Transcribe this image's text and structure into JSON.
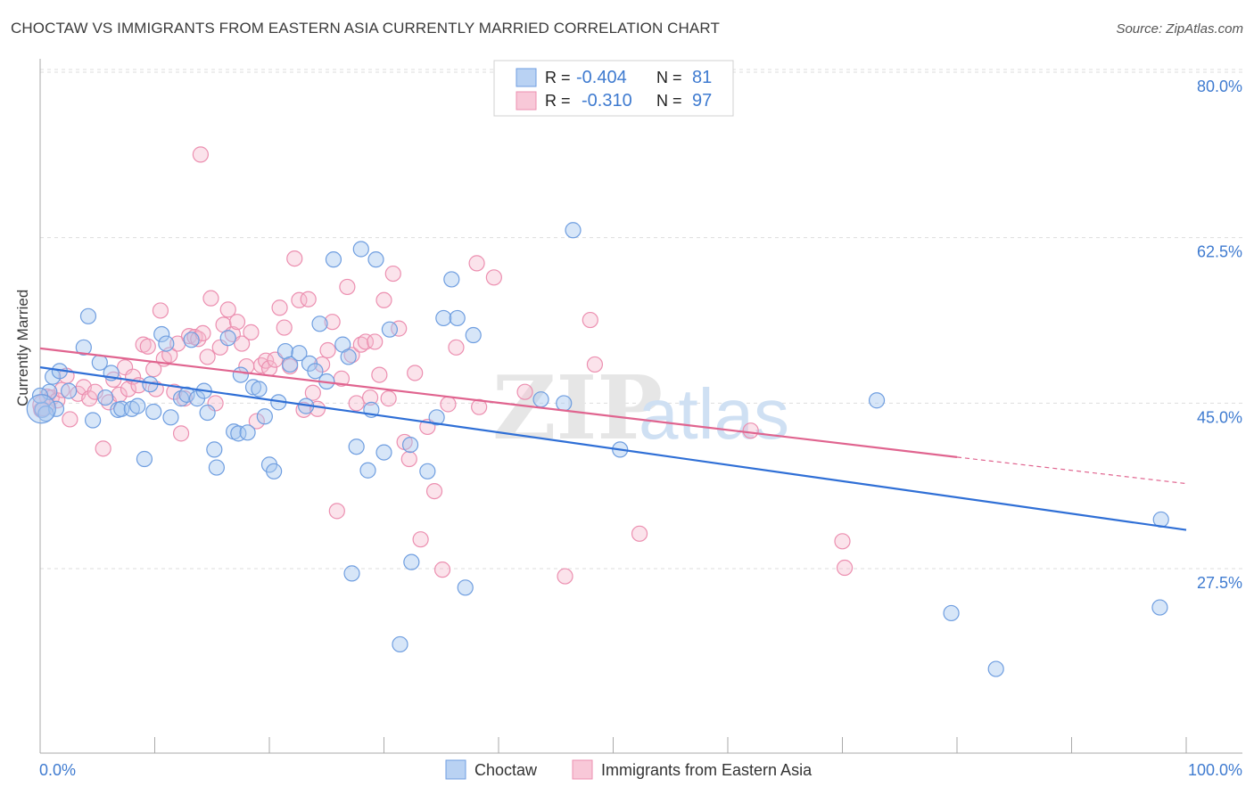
{
  "title": "CHOCTAW VS IMMIGRANTS FROM EASTERN ASIA CURRENTLY MARRIED CORRELATION CHART",
  "source": "Source: ZipAtlas.com",
  "watermark": {
    "zip": "ZIP",
    "atlas": "atlas"
  },
  "colors": {
    "blue_stroke": "#6f9ee0",
    "blue_fill": "rgba(167,199,240,0.45)",
    "blue_line": "#2f6fd6",
    "pink_stroke": "#ec8fb0",
    "pink_fill": "rgba(246,186,206,0.40)",
    "pink_line": "#e0648f",
    "tick_text": "#3f7bd0",
    "grid": "#dddddd",
    "axis": "#aaaaaa"
  },
  "legend": {
    "rows": [
      {
        "r_label": "R =",
        "r_value": "-0.404",
        "n_label": "N =",
        "n_value": "81"
      },
      {
        "r_label": "R =",
        "r_value": "-0.310",
        "n_label": "N =",
        "n_value": "97"
      }
    ]
  },
  "bottom_legend": [
    "Choctaw",
    "Immigrants from Eastern Asia"
  ],
  "chart_data": {
    "type": "scatter",
    "title": "CHOCTAW VS IMMIGRANTS FROM EASTERN ASIA CURRENTLY MARRIED CORRELATION CHART",
    "xlabel": "",
    "ylabel": "Currently Married",
    "xlim": [
      0,
      100
    ],
    "ylim": [
      10,
      83
    ],
    "x_tick_labels": [
      "0.0%",
      "100.0%"
    ],
    "y_ticks": [
      27.5,
      45.0,
      62.5,
      80.0
    ],
    "y_tick_labels": [
      "27.5%",
      "45.0%",
      "62.5%",
      "80.0%"
    ],
    "grid": true,
    "legend_position": "top-center",
    "series": [
      {
        "name": "Choctaw",
        "r": -0.404,
        "n": 81,
        "trend": {
          "x": [
            0,
            100
          ],
          "y": [
            50.3,
            33.1
          ]
        },
        "points": [
          [
            0.2,
            45.8
          ],
          [
            0.8,
            47.7
          ],
          [
            1.1,
            49.3
          ],
          [
            1.4,
            45.9
          ],
          [
            1.7,
            49.9
          ],
          [
            2.5,
            47.8
          ],
          [
            3.8,
            52.4
          ],
          [
            4.2,
            55.7
          ],
          [
            4.6,
            44.7
          ],
          [
            5.2,
            50.8
          ],
          [
            5.7,
            47.1
          ],
          [
            6.2,
            49.7
          ],
          [
            6.8,
            45.8
          ],
          [
            7.1,
            45.9
          ],
          [
            8.0,
            45.9
          ],
          [
            8.5,
            46.2
          ],
          [
            9.1,
            40.6
          ],
          [
            9.6,
            48.5
          ],
          [
            9.9,
            45.6
          ],
          [
            10.6,
            53.8
          ],
          [
            11.0,
            52.8
          ],
          [
            11.4,
            45.0
          ],
          [
            12.3,
            47.0
          ],
          [
            12.8,
            47.4
          ],
          [
            13.2,
            53.2
          ],
          [
            13.7,
            47.0
          ],
          [
            14.3,
            47.8
          ],
          [
            14.6,
            45.5
          ],
          [
            15.2,
            41.6
          ],
          [
            15.4,
            39.7
          ],
          [
            16.4,
            53.4
          ],
          [
            16.9,
            43.5
          ],
          [
            17.3,
            43.3
          ],
          [
            17.5,
            49.5
          ],
          [
            18.1,
            43.4
          ],
          [
            18.6,
            48.2
          ],
          [
            19.1,
            48.0
          ],
          [
            19.6,
            45.1
          ],
          [
            20.0,
            40.0
          ],
          [
            20.4,
            39.3
          ],
          [
            20.8,
            46.6
          ],
          [
            21.4,
            52.0
          ],
          [
            21.8,
            50.6
          ],
          [
            22.6,
            51.8
          ],
          [
            23.2,
            46.2
          ],
          [
            23.5,
            50.7
          ],
          [
            24.0,
            49.9
          ],
          [
            24.4,
            54.9
          ],
          [
            25.0,
            48.8
          ],
          [
            25.6,
            61.7
          ],
          [
            26.4,
            52.7
          ],
          [
            26.9,
            51.4
          ],
          [
            27.2,
            28.5
          ],
          [
            27.6,
            41.9
          ],
          [
            28.0,
            62.8
          ],
          [
            28.6,
            39.4
          ],
          [
            28.9,
            45.8
          ],
          [
            29.3,
            61.7
          ],
          [
            30.0,
            41.3
          ],
          [
            30.5,
            54.3
          ],
          [
            31.4,
            21.0
          ],
          [
            32.3,
            42.1
          ],
          [
            32.4,
            29.7
          ],
          [
            33.8,
            39.3
          ],
          [
            34.6,
            45.0
          ],
          [
            35.2,
            55.5
          ],
          [
            35.9,
            59.6
          ],
          [
            36.4,
            55.5
          ],
          [
            37.1,
            27.0
          ],
          [
            37.8,
            53.7
          ],
          [
            43.7,
            46.9
          ],
          [
            45.7,
            46.5
          ],
          [
            46.5,
            64.8
          ],
          [
            50.6,
            41.6
          ],
          [
            73.0,
            46.8
          ],
          [
            79.5,
            24.3
          ],
          [
            83.4,
            18.4
          ],
          [
            97.7,
            24.9
          ],
          [
            97.8,
            34.2
          ],
          [
            0.0,
            47.3
          ],
          [
            0.5,
            45.4
          ]
        ]
      },
      {
        "name": "Immigrants from Eastern Asia",
        "r": -0.31,
        "n": 97,
        "trend": {
          "x": [
            0,
            80
          ],
          "y": [
            52.3,
            40.8
          ],
          "dashed_to": {
            "x": 100,
            "y": 38.0
          }
        },
        "points": [
          [
            0.1,
            45.8
          ],
          [
            0.6,
            47.2
          ],
          [
            1.0,
            47.1
          ],
          [
            1.5,
            46.8
          ],
          [
            1.9,
            47.9
          ],
          [
            2.3,
            49.4
          ],
          [
            2.6,
            44.8
          ],
          [
            3.3,
            47.5
          ],
          [
            3.8,
            48.2
          ],
          [
            4.3,
            47.0
          ],
          [
            4.8,
            47.7
          ],
          [
            5.5,
            41.7
          ],
          [
            6.0,
            46.6
          ],
          [
            6.4,
            49.0
          ],
          [
            6.9,
            47.4
          ],
          [
            7.4,
            50.3
          ],
          [
            7.7,
            48.0
          ],
          [
            8.1,
            49.3
          ],
          [
            8.6,
            48.4
          ],
          [
            9.0,
            52.7
          ],
          [
            9.4,
            52.5
          ],
          [
            9.9,
            50.1
          ],
          [
            10.1,
            48.0
          ],
          [
            10.5,
            56.3
          ],
          [
            10.8,
            51.2
          ],
          [
            11.3,
            51.6
          ],
          [
            11.7,
            47.7
          ],
          [
            12.0,
            52.8
          ],
          [
            12.3,
            43.3
          ],
          [
            12.6,
            47.0
          ],
          [
            13.0,
            53.6
          ],
          [
            13.5,
            53.5
          ],
          [
            13.8,
            53.3
          ],
          [
            14.2,
            53.9
          ],
          [
            14.6,
            51.4
          ],
          [
            14.9,
            57.6
          ],
          [
            15.3,
            46.5
          ],
          [
            15.7,
            52.4
          ],
          [
            16.0,
            54.8
          ],
          [
            16.4,
            56.4
          ],
          [
            16.8,
            53.8
          ],
          [
            17.2,
            55.1
          ],
          [
            17.6,
            52.8
          ],
          [
            18.0,
            50.4
          ],
          [
            18.4,
            54.0
          ],
          [
            18.9,
            44.6
          ],
          [
            19.3,
            50.5
          ],
          [
            19.7,
            51.0
          ],
          [
            20.0,
            50.2
          ],
          [
            20.5,
            51.1
          ],
          [
            20.9,
            56.6
          ],
          [
            21.3,
            54.5
          ],
          [
            21.8,
            50.4
          ],
          [
            22.2,
            61.8
          ],
          [
            22.6,
            57.4
          ],
          [
            23.0,
            45.8
          ],
          [
            23.4,
            57.5
          ],
          [
            23.8,
            47.6
          ],
          [
            24.2,
            45.9
          ],
          [
            24.6,
            50.6
          ],
          [
            25.1,
            52.1
          ],
          [
            25.5,
            55.1
          ],
          [
            25.9,
            35.1
          ],
          [
            26.3,
            49.1
          ],
          [
            26.8,
            58.8
          ],
          [
            27.2,
            51.6
          ],
          [
            27.6,
            46.5
          ],
          [
            28.0,
            52.7
          ],
          [
            28.4,
            53.0
          ],
          [
            28.8,
            47.1
          ],
          [
            29.2,
            53.0
          ],
          [
            29.6,
            49.5
          ],
          [
            30.0,
            57.4
          ],
          [
            30.4,
            47.0
          ],
          [
            30.8,
            60.2
          ],
          [
            31.3,
            54.4
          ],
          [
            31.8,
            42.4
          ],
          [
            32.2,
            40.6
          ],
          [
            32.7,
            49.7
          ],
          [
            33.2,
            32.1
          ],
          [
            33.8,
            44.0
          ],
          [
            34.4,
            37.2
          ],
          [
            35.1,
            28.9
          ],
          [
            35.6,
            46.4
          ],
          [
            36.3,
            52.4
          ],
          [
            38.1,
            61.3
          ],
          [
            38.3,
            46.1
          ],
          [
            39.6,
            59.8
          ],
          [
            42.3,
            47.7
          ],
          [
            45.8,
            28.2
          ],
          [
            48.0,
            55.3
          ],
          [
            48.4,
            50.6
          ],
          [
            52.3,
            32.7
          ],
          [
            62.0,
            43.6
          ],
          [
            70.0,
            31.9
          ],
          [
            70.2,
            29.1
          ],
          [
            14.0,
            72.8
          ]
        ]
      }
    ]
  }
}
